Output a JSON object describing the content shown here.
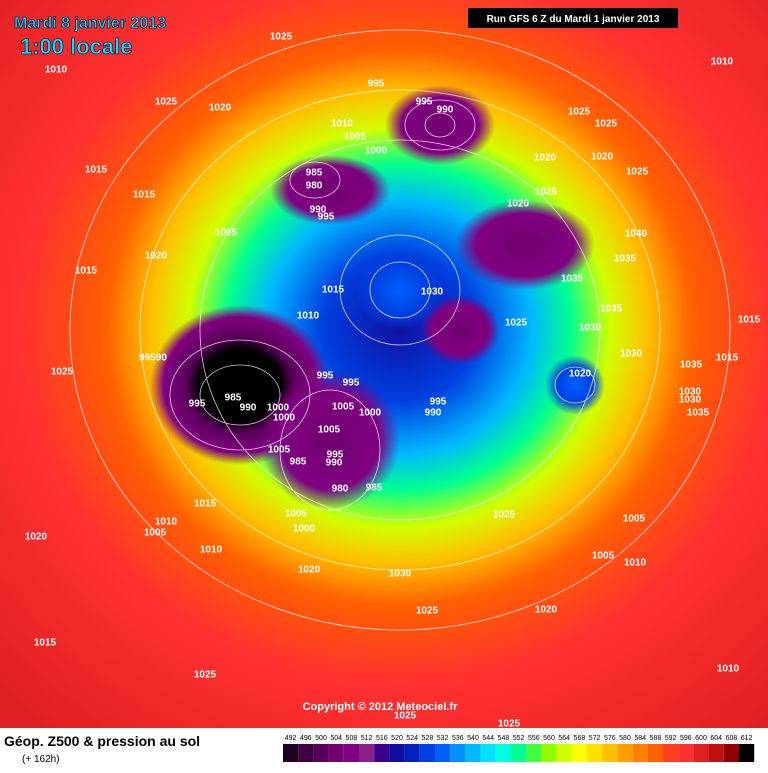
{
  "header": {
    "date": "Mardi 8 janvier 2013",
    "time": "1:00 locale",
    "run": "Run GFS 6 Z du Mardi 1 janvier 2013"
  },
  "copyright": "Copyright © 2012 Meteociel.fr",
  "footer": {
    "title": "Géop. Z500 & pression au sol",
    "lead": "(+ 162h)"
  },
  "colorbar": {
    "labels": [
      492,
      496,
      500,
      504,
      508,
      512,
      516,
      520,
      524,
      528,
      532,
      536,
      540,
      544,
      548,
      552,
      556,
      560,
      564,
      568,
      572,
      576,
      580,
      584,
      588,
      592,
      596,
      600,
      604,
      608,
      612
    ],
    "colors": [
      "#200020",
      "#400040",
      "#5a005a",
      "#700070",
      "#800080",
      "#8a208a",
      "#3a0090",
      "#1010a0",
      "#0020c0",
      "#0040e0",
      "#0060ff",
      "#0090ff",
      "#00b8ff",
      "#00e0ff",
      "#00ffe0",
      "#00ff90",
      "#40ff40",
      "#90ff00",
      "#d0ff00",
      "#ffff00",
      "#ffe000",
      "#ffc000",
      "#ffa000",
      "#ff8000",
      "#ff6000",
      "#ff4020",
      "#ff3030",
      "#e02020",
      "#c01010",
      "#900000",
      "#000000"
    ]
  },
  "isobar_labels": [
    1025,
    1010,
    995,
    1010,
    1025,
    1020,
    995,
    990,
    1010,
    1025,
    1025,
    1005,
    1000,
    1020,
    1020,
    985,
    980,
    1025,
    1015,
    1015,
    1025,
    990,
    995,
    1020,
    1005,
    1040,
    1020,
    1035,
    1035,
    1015,
    1030,
    1015,
    1035,
    1010,
    1025,
    1030,
    1015,
    99590,
    1030,
    1035,
    1015,
    1025,
    1020,
    995,
    995,
    1030,
    1030,
    985,
    990,
    995,
    1000,
    1000,
    1005,
    1000,
    995,
    990,
    1035,
    1005,
    995,
    990,
    1005,
    985,
    980,
    985,
    1015,
    1025,
    1005,
    1010,
    1005,
    1000,
    1005,
    1020,
    1010,
    1005,
    1010,
    1020,
    1030,
    1025,
    1020,
    1015,
    1025,
    1010,
    1025,
    1025
  ]
}
